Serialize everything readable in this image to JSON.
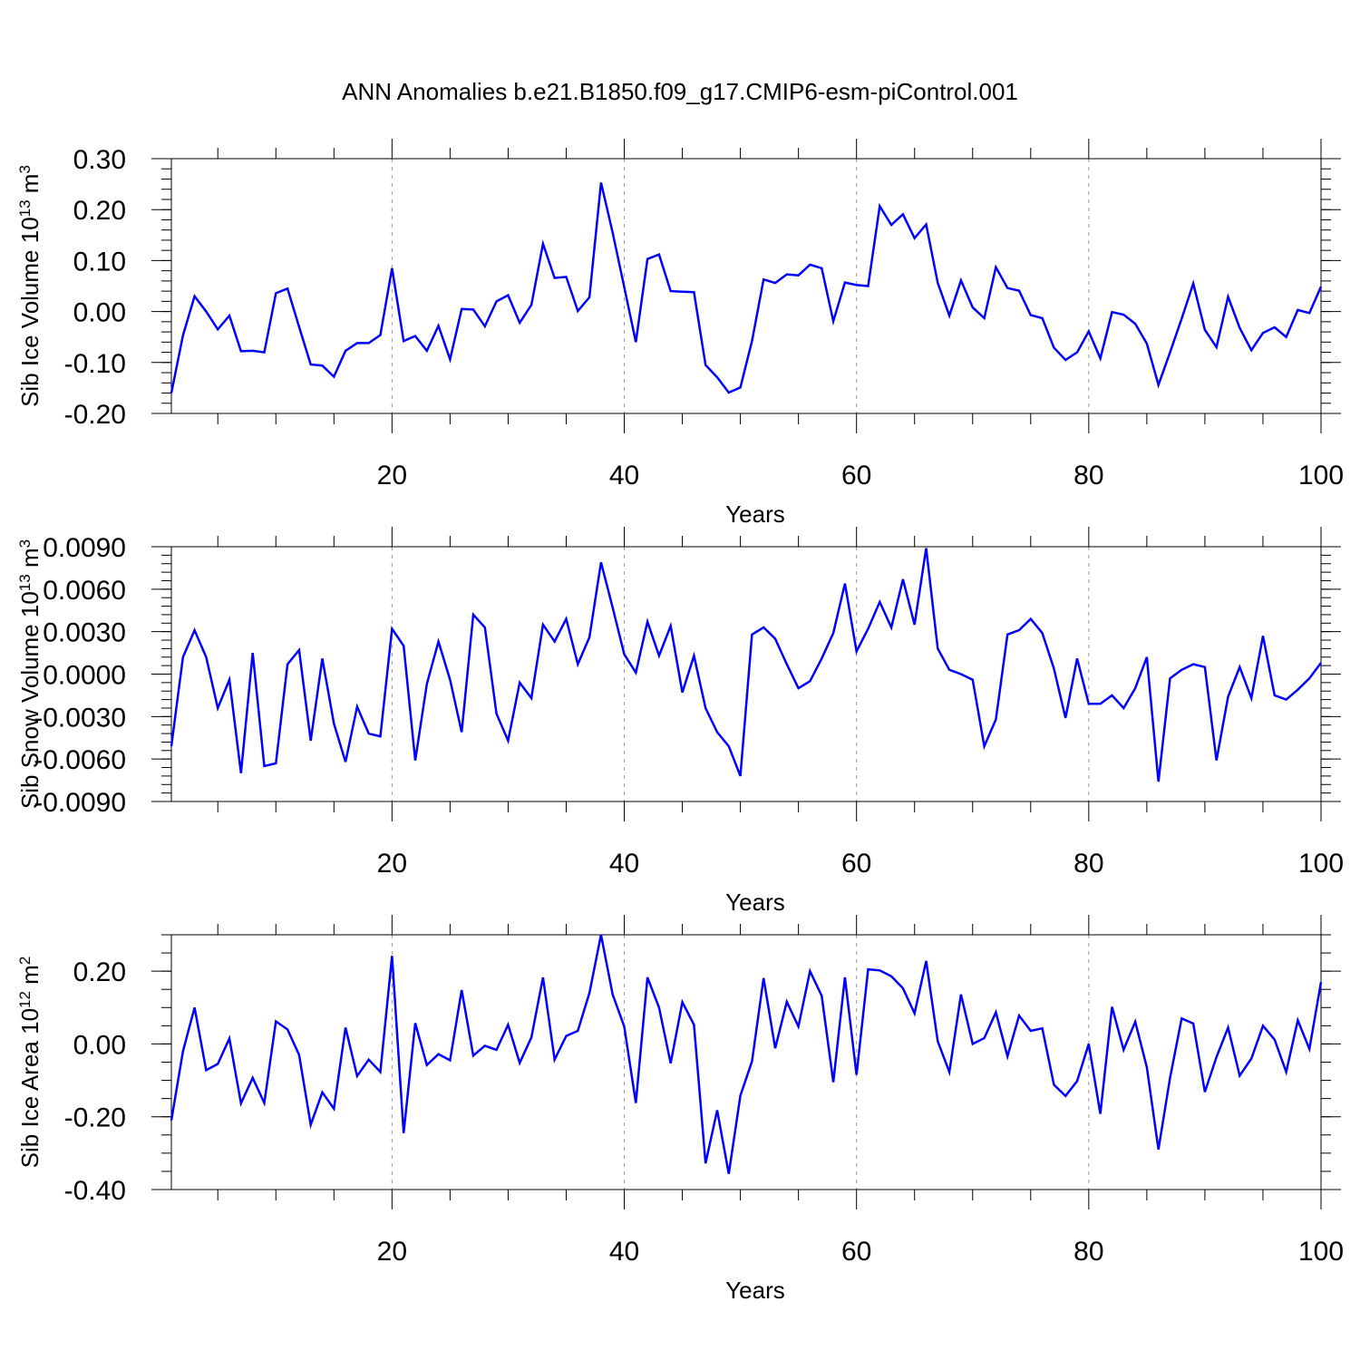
{
  "title": "ANN Anomalies b.e21.B1850.f09_g17.CMIP6-esm-piControl.001",
  "colors": {
    "line": "#0000ff",
    "grid": "#999999",
    "axis": "#000000"
  },
  "chart_data": [
    {
      "type": "line",
      "name": "sib-ice-volume",
      "ylabel_main": "Sib Ice Volume 10",
      "ylabel_exp": "13",
      "ylabel_unit": " m",
      "ylabel_unit_exp": "3",
      "xlabel": "Years",
      "xlim": [
        1,
        100
      ],
      "ylim": [
        -0.2,
        0.3
      ],
      "xticks": [
        20,
        40,
        60,
        80,
        100
      ],
      "xtick_labels": [
        "20",
        "40",
        "60",
        "80",
        "100"
      ],
      "yticks": [
        -0.2,
        -0.1,
        0.0,
        0.1,
        0.2,
        0.3
      ],
      "ytick_labels": [
        "-0.20",
        "-0.10",
        "0.00",
        "0.10",
        "0.20",
        "0.30"
      ],
      "grid_x": [
        20,
        40,
        60,
        80
      ],
      "y_minor_step": 0.02,
      "x": "1..100",
      "values": [
        -0.16,
        -0.047,
        0.03,
        0.0,
        -0.035,
        -0.008,
        -0.078,
        -0.077,
        -0.08,
        0.036,
        0.045,
        -0.03,
        -0.104,
        -0.106,
        -0.128,
        -0.077,
        -0.062,
        -0.062,
        -0.046,
        0.085,
        -0.058,
        -0.048,
        -0.077,
        -0.028,
        -0.094,
        0.005,
        0.004,
        -0.029,
        0.02,
        0.032,
        -0.022,
        0.013,
        0.133,
        0.066,
        0.068,
        0.001,
        0.028,
        0.253,
        0.155,
        0.048,
        -0.06,
        0.103,
        0.112,
        0.04,
        0.039,
        0.038,
        -0.105,
        -0.129,
        -0.159,
        -0.149,
        -0.058,
        0.063,
        0.056,
        0.073,
        0.071,
        0.092,
        0.085,
        -0.019,
        0.057,
        0.052,
        0.05,
        0.207,
        0.17,
        0.191,
        0.144,
        0.171,
        0.056,
        -0.008,
        0.061,
        0.008,
        -0.013,
        0.087,
        0.046,
        0.041,
        -0.007,
        -0.013,
        -0.071,
        -0.095,
        -0.08,
        -0.039,
        -0.092,
        -0.001,
        -0.006,
        -0.024,
        -0.063,
        -0.144,
        -0.08,
        -0.014,
        0.055,
        -0.036,
        -0.07,
        0.029,
        -0.032,
        -0.076,
        -0.042,
        -0.031,
        -0.05,
        0.003,
        -0.003,
        0.049
      ]
    },
    {
      "type": "line",
      "name": "sib-snow-volume",
      "ylabel_main": "Sib Snow Volume 10",
      "ylabel_exp": "13",
      "ylabel_unit": " m",
      "ylabel_unit_exp": "3",
      "xlabel": "Years",
      "xlim": [
        1,
        100
      ],
      "ylim": [
        -0.009,
        0.009
      ],
      "xticks": [
        20,
        40,
        60,
        80,
        100
      ],
      "xtick_labels": [
        "20",
        "40",
        "60",
        "80",
        "100"
      ],
      "yticks": [
        -0.009,
        -0.006,
        -0.003,
        0.0,
        0.003,
        0.006,
        0.009
      ],
      "ytick_labels": [
        "-0.0090",
        "-0.0060",
        "-0.0030",
        "0.0000",
        "0.0030",
        "0.0060",
        "0.0090"
      ],
      "grid_x": [
        20,
        40,
        60,
        80
      ],
      "y_minor_step": 0.0006,
      "x": "1..100",
      "values": [
        -0.0051,
        0.0012,
        0.0031,
        0.0012,
        -0.0024,
        -0.0004,
        -0.007,
        0.0015,
        -0.0065,
        -0.0063,
        0.0007,
        0.0017,
        -0.0047,
        0.0011,
        -0.0035,
        -0.0062,
        -0.0023,
        -0.0042,
        -0.0044,
        0.0032,
        0.002,
        -0.0061,
        -0.0007,
        0.0023,
        -0.0004,
        -0.0041,
        0.0042,
        0.0033,
        -0.0028,
        -0.0047,
        -0.0006,
        -0.0017,
        0.0035,
        0.0023,
        0.0039,
        0.0007,
        0.0026,
        0.0079,
        0.0047,
        0.0014,
        0.0001,
        0.0037,
        0.0013,
        0.0034,
        -0.0013,
        0.0013,
        -0.0024,
        -0.0041,
        -0.0051,
        -0.0072,
        0.0028,
        0.0033,
        0.0025,
        0.0007,
        -0.001,
        -0.0005,
        0.0011,
        0.0029,
        0.0064,
        0.0016,
        0.0032,
        0.0051,
        0.0033,
        0.0067,
        0.0035,
        0.0089,
        0.0018,
        0.0003,
        0.0,
        -0.0004,
        -0.0051,
        -0.0032,
        0.0028,
        0.0031,
        0.0039,
        0.0029,
        0.0004,
        -0.0031,
        0.0011,
        -0.0021,
        -0.0021,
        -0.0015,
        -0.0024,
        -0.001,
        0.0012,
        -0.0076,
        -0.0003,
        0.0003,
        0.0007,
        0.0005,
        -0.0061,
        -0.0016,
        0.0005,
        -0.0017,
        0.0027,
        -0.0015,
        -0.0018,
        -0.0011,
        -0.0003,
        0.0008
      ]
    },
    {
      "type": "line",
      "name": "sib-ice-area",
      "ylabel_main": "Sib Ice Area 10",
      "ylabel_exp": "12",
      "ylabel_unit": " m",
      "ylabel_unit_exp": "2",
      "xlabel": "Years",
      "xlim": [
        1,
        100
      ],
      "ylim": [
        -0.4,
        0.3
      ],
      "xticks": [
        20,
        40,
        60,
        80,
        100
      ],
      "xtick_labels": [
        "20",
        "40",
        "60",
        "80",
        "100"
      ],
      "yticks": [
        -0.4,
        -0.2,
        0.0,
        0.2
      ],
      "ytick_labels": [
        "-0.40",
        "-0.20",
        "0.00",
        "0.20"
      ],
      "grid_x": [
        20,
        40,
        60,
        80
      ],
      "y_minor_step": 0.05,
      "x": "1..100",
      "values": [
        -0.21,
        -0.02,
        0.1,
        -0.072,
        -0.055,
        0.015,
        -0.163,
        -0.093,
        -0.162,
        0.062,
        0.04,
        -0.03,
        -0.222,
        -0.133,
        -0.178,
        0.045,
        -0.088,
        -0.043,
        -0.077,
        0.242,
        -0.245,
        0.057,
        -0.058,
        -0.028,
        -0.045,
        0.148,
        -0.032,
        -0.005,
        -0.016,
        0.053,
        -0.052,
        0.018,
        0.183,
        -0.043,
        0.022,
        0.036,
        0.14,
        0.3,
        0.136,
        0.048,
        -0.162,
        0.183,
        0.1,
        -0.053,
        0.115,
        0.053,
        -0.328,
        -0.182,
        -0.357,
        -0.142,
        -0.048,
        0.181,
        -0.012,
        0.116,
        0.048,
        0.2,
        0.132,
        -0.105,
        0.183,
        -0.085,
        0.205,
        0.202,
        0.186,
        0.153,
        0.084,
        0.228,
        0.007,
        -0.077,
        0.136,
        -0.0,
        0.016,
        0.087,
        -0.034,
        0.078,
        0.036,
        0.043,
        -0.112,
        -0.143,
        -0.102,
        -0.0,
        -0.192,
        0.102,
        -0.016,
        0.061,
        -0.064,
        -0.29,
        -0.093,
        0.07,
        0.056,
        -0.132,
        -0.036,
        0.045,
        -0.087,
        -0.04,
        0.05,
        0.012,
        -0.077,
        0.065,
        -0.014,
        0.17
      ]
    }
  ]
}
